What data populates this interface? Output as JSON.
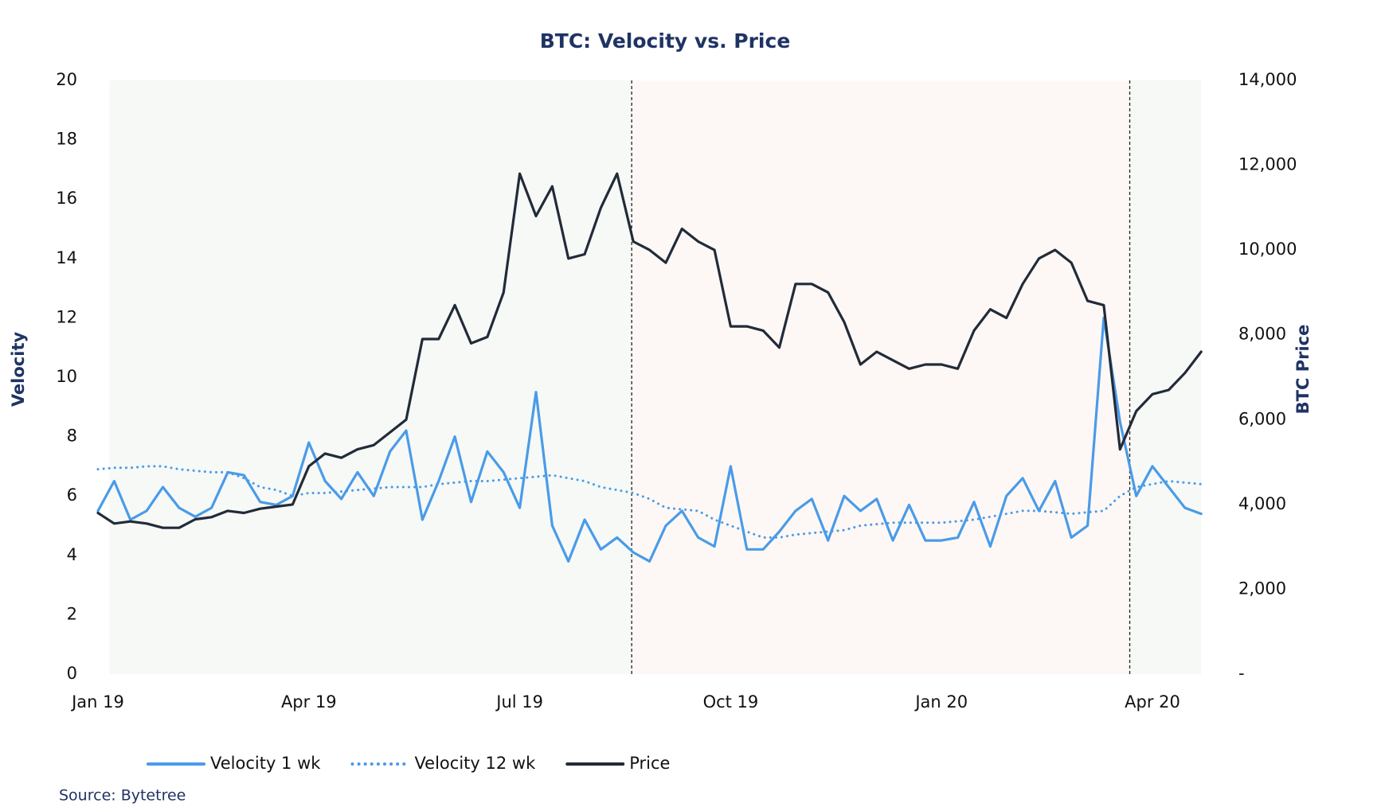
{
  "chart_data": {
    "type": "line",
    "title": "BTC: Velocity vs. Price",
    "y_label": "Velocity",
    "y2_label": "BTC Price",
    "source": "Source: Bytetree",
    "categories": [
      "Jan 19",
      null,
      null,
      null,
      null,
      null,
      null,
      null,
      null,
      null,
      null,
      null,
      null,
      "Apr 19",
      null,
      null,
      null,
      null,
      null,
      null,
      null,
      null,
      null,
      null,
      null,
      null,
      "Jul 19",
      null,
      null,
      null,
      null,
      null,
      null,
      null,
      null,
      null,
      null,
      null,
      null,
      "Oct 19",
      null,
      null,
      null,
      null,
      null,
      null,
      null,
      null,
      null,
      null,
      null,
      null,
      "Jan 20",
      null,
      null,
      null,
      null,
      null,
      null,
      null,
      null,
      null,
      null,
      null,
      null,
      "Apr 20",
      null,
      null,
      null
    ],
    "ylim": [
      0,
      20
    ],
    "yticks": [
      0,
      2,
      4,
      6,
      8,
      10,
      12,
      14,
      16,
      18,
      20
    ],
    "y2lim": [
      0,
      14000
    ],
    "y2ticks": [
      {
        "value": 0,
        "label": "-"
      },
      {
        "value": 2000,
        "label": "2,000"
      },
      {
        "value": 4000,
        "label": "4,000"
      },
      {
        "value": 6000,
        "label": "6,000"
      },
      {
        "value": 8000,
        "label": "8,000"
      },
      {
        "value": 10000,
        "label": "10,000"
      },
      {
        "value": 12000,
        "label": "12,000"
      },
      {
        "value": 14000,
        "label": "14,000"
      }
    ],
    "series": [
      {
        "name": "Velocity 1 wk",
        "color": "#4a9be8",
        "line_style": "solid",
        "values": [
          5.5,
          6.5,
          5.2,
          5.5,
          6.3,
          5.6,
          5.3,
          5.6,
          6.8,
          6.7,
          5.8,
          5.7,
          6.0,
          7.8,
          6.5,
          5.9,
          6.8,
          6.0,
          7.5,
          8.2,
          5.2,
          6.5,
          8.0,
          5.8,
          7.5,
          6.8,
          5.6,
          9.5,
          5.0,
          3.8,
          5.2,
          4.2,
          4.6,
          4.1,
          3.8,
          5.0,
          5.5,
          4.6,
          4.3,
          7.0,
          4.2,
          4.2,
          4.8,
          5.5,
          5.9,
          4.5,
          6.0,
          5.5,
          5.9,
          4.5,
          5.7,
          4.5,
          4.5,
          4.6,
          5.8,
          4.3,
          6.0,
          6.6,
          5.5,
          6.5,
          4.6,
          5.0,
          12.0,
          8.5,
          6.0,
          7.0,
          6.3,
          5.6,
          5.4
        ]
      },
      {
        "name": "Velocity 12 wk",
        "color": "#4a9be8",
        "line_style": "dotted",
        "values": [
          6.9,
          6.95,
          6.95,
          7.0,
          7.0,
          6.9,
          6.85,
          6.8,
          6.8,
          6.6,
          6.3,
          6.2,
          6.0,
          6.1,
          6.1,
          6.15,
          6.2,
          6.25,
          6.3,
          6.3,
          6.3,
          6.4,
          6.45,
          6.5,
          6.5,
          6.55,
          6.6,
          6.65,
          6.7,
          6.6,
          6.5,
          6.3,
          6.2,
          6.1,
          5.9,
          5.6,
          5.55,
          5.5,
          5.2,
          5.0,
          4.8,
          4.6,
          4.6,
          4.7,
          4.75,
          4.8,
          4.85,
          5.0,
          5.05,
          5.1,
          5.1,
          5.1,
          5.1,
          5.15,
          5.2,
          5.3,
          5.4,
          5.5,
          5.5,
          5.45,
          5.4,
          5.45,
          5.5,
          6.0,
          6.3,
          6.4,
          6.5,
          6.45,
          6.4
        ]
      },
      {
        "name": "Price",
        "color": "#222b38",
        "line_style": "solid",
        "axis": "y2",
        "values": [
          3800,
          3550,
          3600,
          3550,
          3450,
          3450,
          3650,
          3700,
          3850,
          3800,
          3900,
          3950,
          4000,
          4900,
          5200,
          5100,
          5300,
          5400,
          5700,
          6000,
          7900,
          7900,
          8700,
          7800,
          7950,
          9000,
          11800,
          10800,
          11500,
          9800,
          9900,
          11000,
          11800,
          10200,
          10000,
          9700,
          10500,
          10200,
          10000,
          8200,
          8200,
          8100,
          7700,
          9200,
          9200,
          9000,
          8300,
          7300,
          7600,
          7400,
          7200,
          7300,
          7300,
          7200,
          8100,
          8600,
          8400,
          9200,
          9800,
          10000,
          9700,
          8800,
          8700,
          5300,
          6200,
          6600,
          6700,
          7100,
          7600
        ]
      }
    ]
  }
}
